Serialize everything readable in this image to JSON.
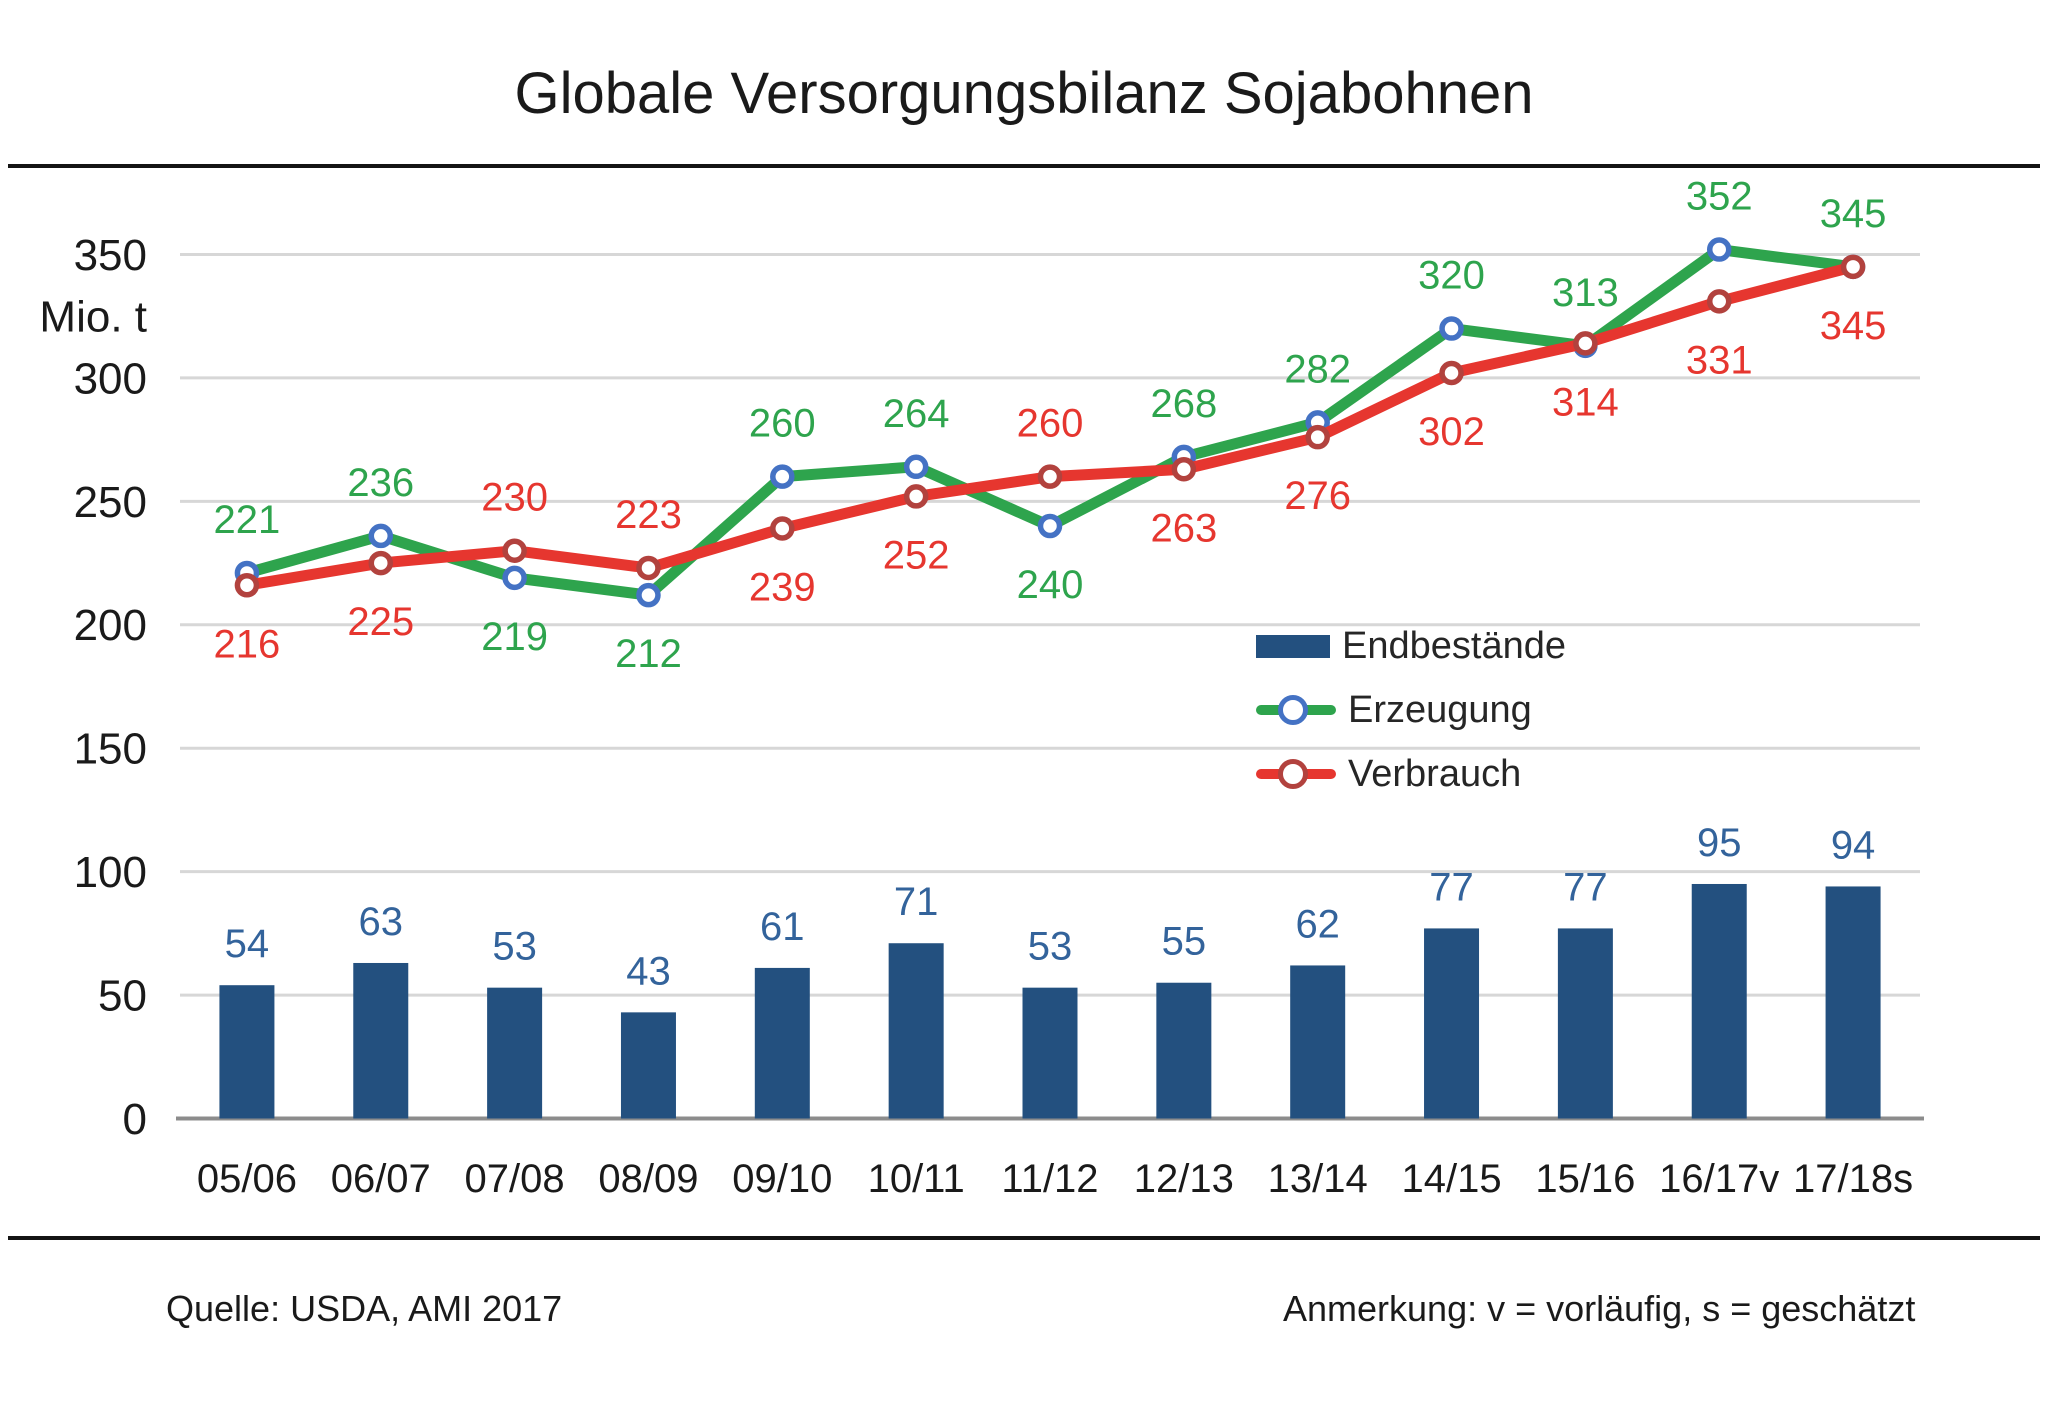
{
  "title": "Globale Versorgungsbilanz Sojabohnen",
  "colors": {
    "bar": "#23507F",
    "bar_label": "#33639B",
    "erzeugung_line": "#2EA44D",
    "erzeugung_marker_ring": "#4472C4",
    "verbrauch_line": "#E6362F",
    "verbrauch_marker_ring": "#B2423E",
    "gridline": "#D7D7D7",
    "zero_axis": "#8C8C8C",
    "axis_text": "#1a1a1a"
  },
  "legend": {
    "items": [
      {
        "label": "Endbestände",
        "swatch": "bar"
      },
      {
        "label": "Erzeugung",
        "swatch": "line-green"
      },
      {
        "label": "Verbrauch",
        "swatch": "line-red"
      }
    ]
  },
  "footer": {
    "source": "Quelle: USDA, AMI 2017",
    "note": "Anmerkung: v = vorläufig, s = geschätzt"
  },
  "chart_data": {
    "type": "combo bar + line",
    "title": "Globale Versorgungsbilanz Sojabohnen",
    "ylabel": "Mio. t",
    "xlabel": "",
    "ylim": [
      0,
      365
    ],
    "grid": true,
    "gridline_step": 50,
    "y_ticks": [
      350,
      300,
      250,
      200,
      150,
      100,
      50,
      0
    ],
    "legend_position": "center-right",
    "categories": [
      "05/06",
      "06/07",
      "07/08",
      "08/09",
      "09/10",
      "10/11",
      "11/12",
      "12/13",
      "13/14",
      "14/15",
      "15/16",
      "16/17v",
      "17/18s"
    ],
    "series": [
      {
        "name": "Endbestände",
        "type": "bar",
        "values": [
          54,
          63,
          53,
          43,
          61,
          71,
          53,
          55,
          62,
          77,
          77,
          95,
          94
        ]
      },
      {
        "name": "Erzeugung",
        "type": "line",
        "values": [
          221,
          236,
          219,
          212,
          260,
          264,
          240,
          268,
          282,
          320,
          313,
          352,
          345
        ]
      },
      {
        "name": "Verbrauch",
        "type": "line",
        "values": [
          216,
          225,
          230,
          223,
          239,
          252,
          260,
          263,
          276,
          302,
          314,
          331,
          345
        ]
      }
    ],
    "erzeugung_label_above": [
      true,
      true,
      false,
      false,
      true,
      true,
      false,
      true,
      true,
      true,
      true,
      true,
      true
    ]
  }
}
